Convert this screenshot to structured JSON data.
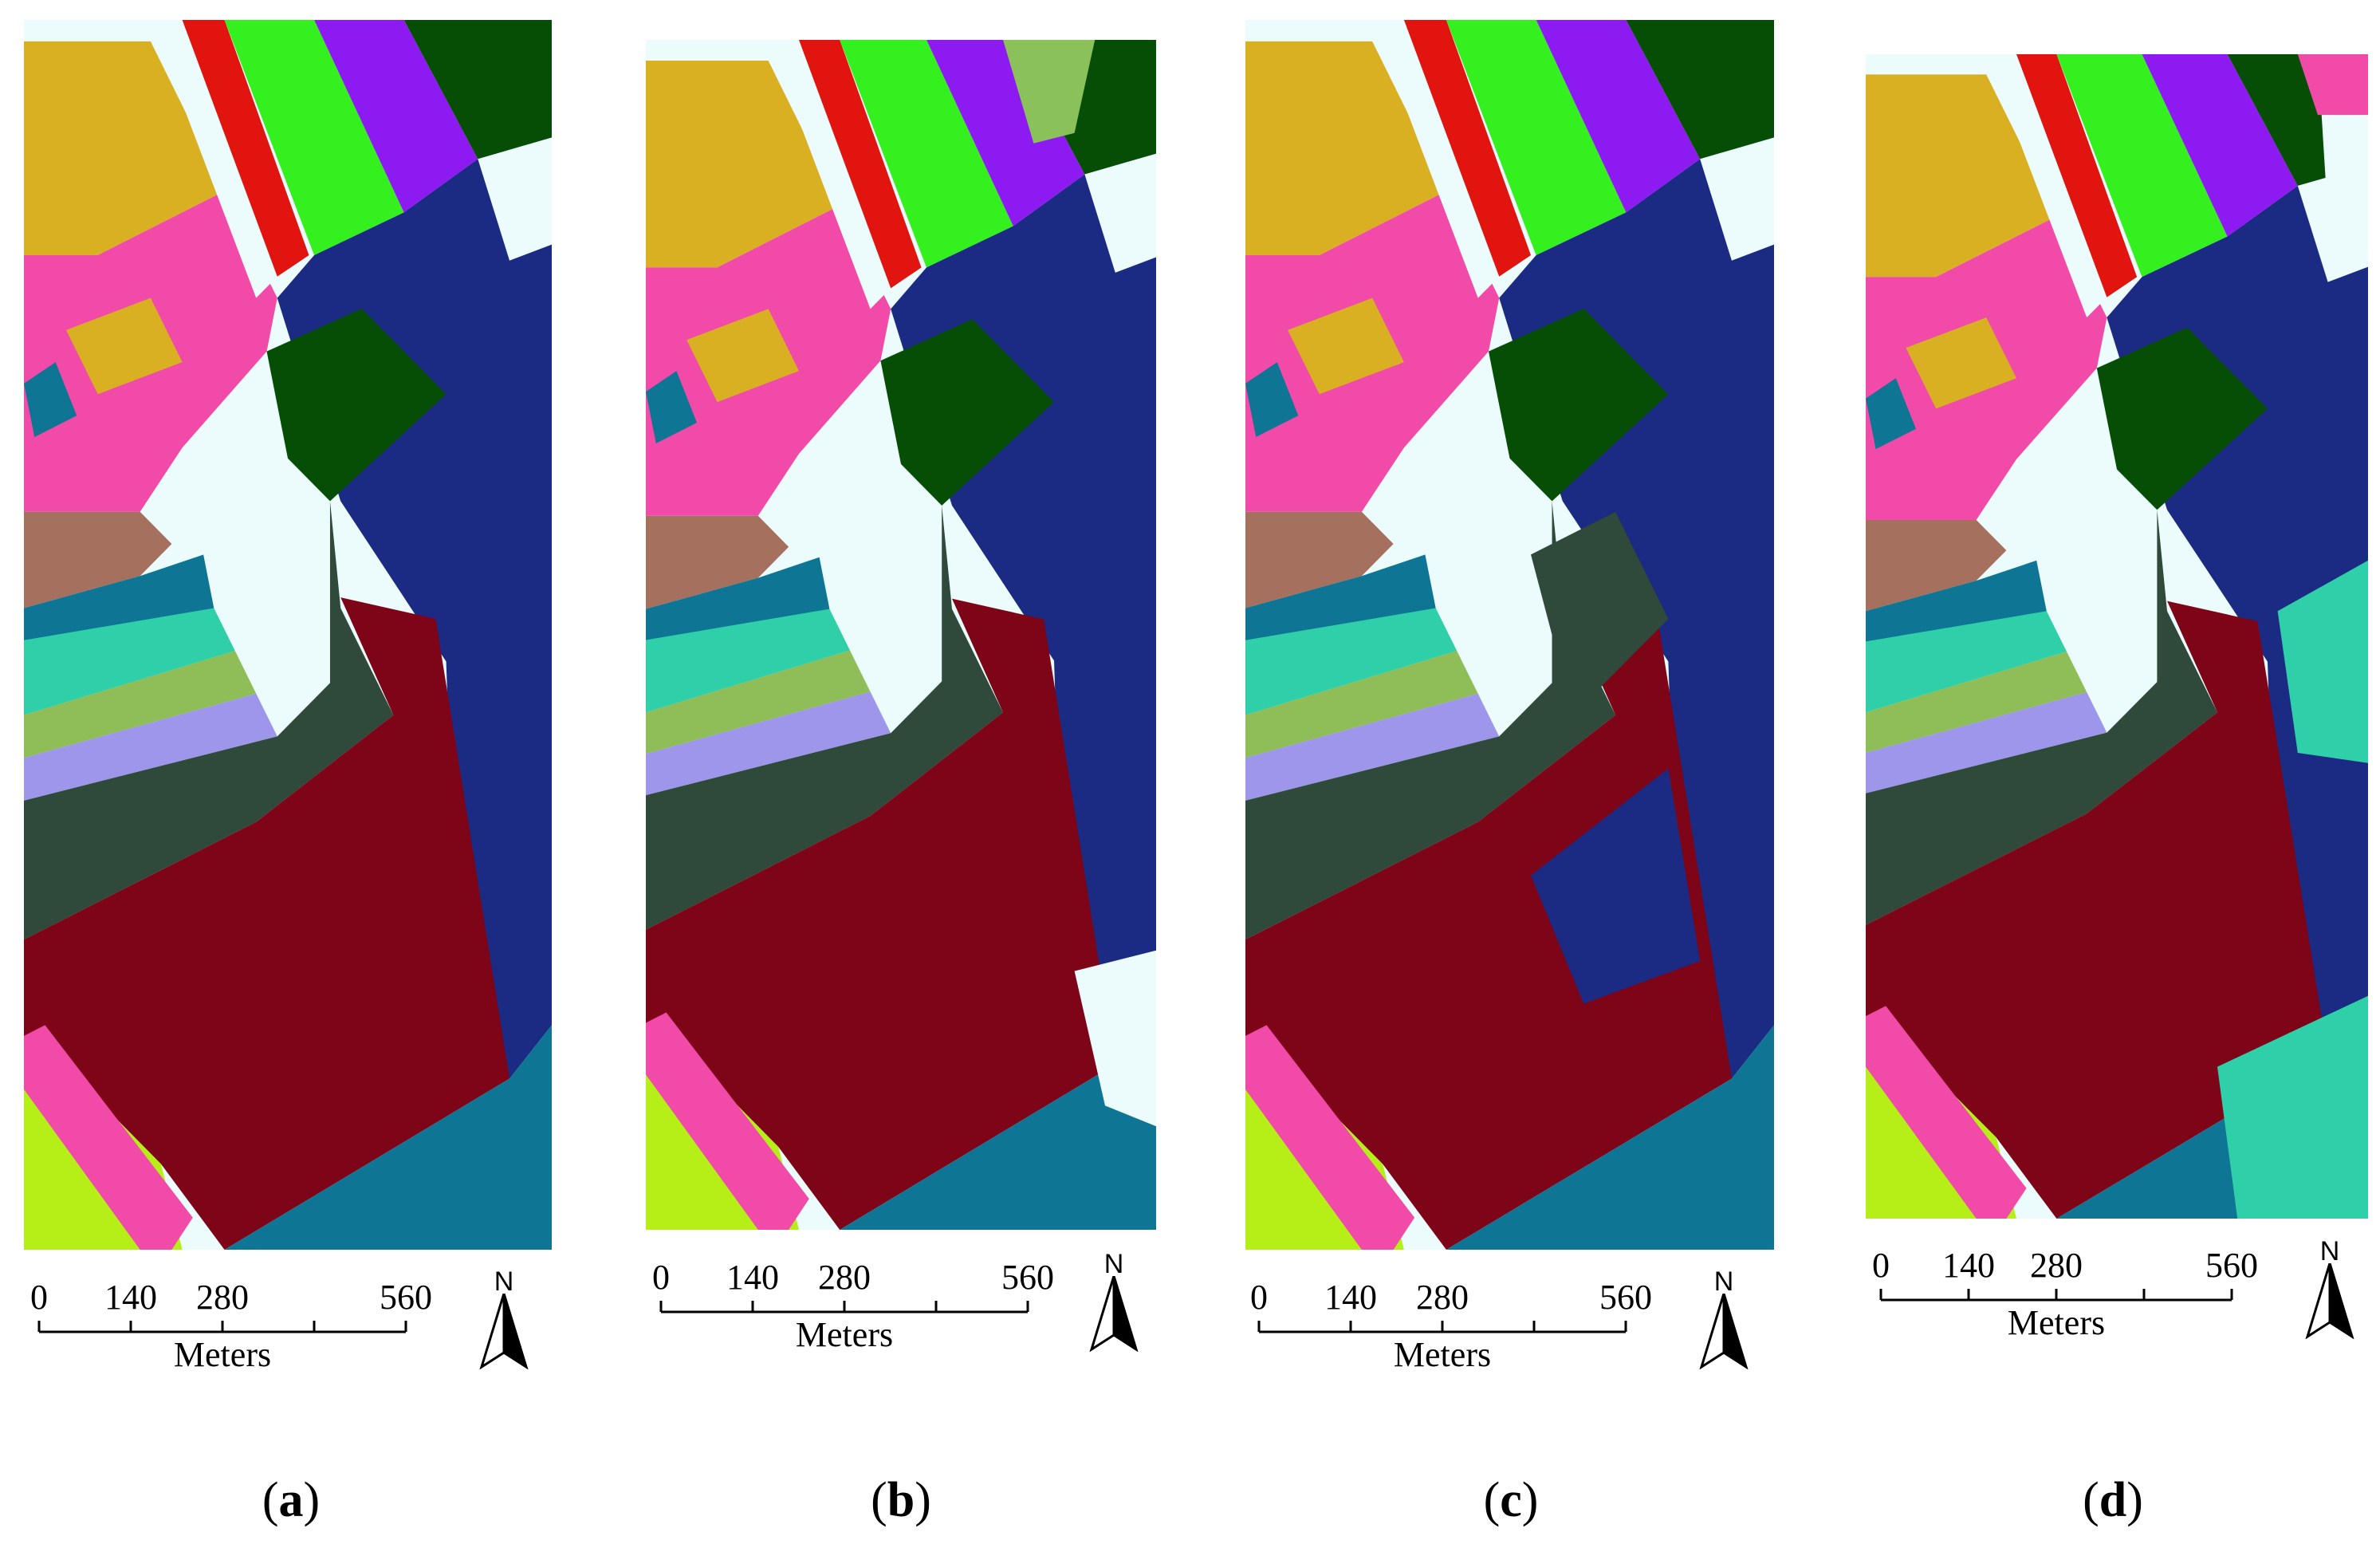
{
  "panels": [
    {
      "caption_open": "(",
      "caption_letter": "a",
      "caption_close": ")"
    },
    {
      "caption_open": "(",
      "caption_letter": "b",
      "caption_close": ")"
    },
    {
      "caption_open": "(",
      "caption_letter": "c",
      "caption_close": ")"
    },
    {
      "caption_open": "(",
      "caption_letter": "d",
      "caption_close": ")"
    }
  ],
  "scale_bar": {
    "ticks": [
      "0",
      "140",
      "280",
      "560"
    ],
    "unit": "Meters"
  },
  "north_arrow": {
    "label": "N"
  },
  "colors": {
    "background": "#ecfbfb",
    "ochre": "#d9b022",
    "red": "#e2140f",
    "bright_green": "#33f01e",
    "violet": "#8e1af2",
    "dark_green": "#064e06",
    "pink": "#f24aa8",
    "navy": "#1b2a82",
    "maroon": "#7e0418",
    "brown": "#a5705e",
    "teal": "#0f7594",
    "aqua": "#2fcfa9",
    "olive_green": "#8fbe58",
    "lavender": "#9e96ea",
    "slate_green": "#2f4a3a",
    "lime": "#b6ef17",
    "sage": "#8bc15a"
  }
}
